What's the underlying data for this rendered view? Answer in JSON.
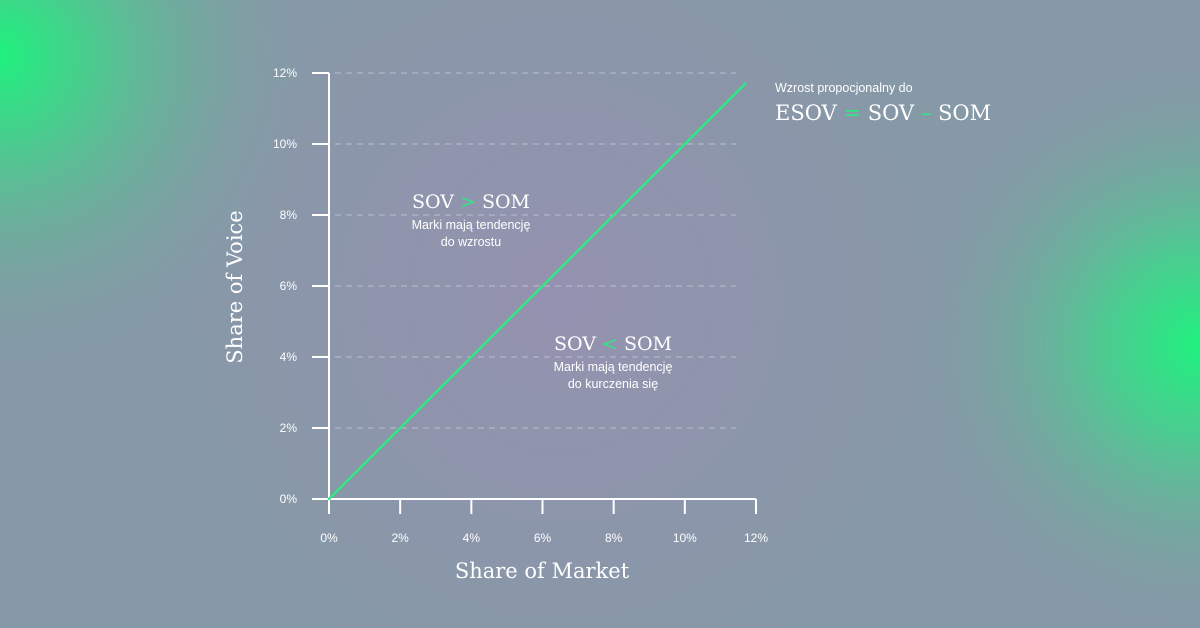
{
  "colors": {
    "accent": "#2ee882",
    "axis": "#ffffff",
    "grid": "#c8cdd8",
    "background": "#8a96aa"
  },
  "chart_data": {
    "type": "line",
    "xlabel": "Share of Market",
    "ylabel": "Share of Voice",
    "xlim": [
      0,
      12
    ],
    "ylim": [
      0,
      12
    ],
    "x_ticks": [
      "0%",
      "2%",
      "4%",
      "6%",
      "8%",
      "10%",
      "12%"
    ],
    "y_ticks": [
      "0%",
      "2%",
      "4%",
      "6%",
      "8%",
      "10%",
      "12%"
    ],
    "grid": "horizontal-dashed",
    "series": [
      {
        "x": [
          0,
          11.7
        ],
        "y": [
          0,
          11.7
        ]
      }
    ],
    "annotations": {
      "above": {
        "left": "SOV",
        "op": ">",
        "right": "SOM",
        "line1": "Marki mają tendencję",
        "line2": "do wzrostu"
      },
      "below": {
        "left": "SOV",
        "op": "<",
        "right": "SOM",
        "line1": "Marki mają tendencję",
        "line2": "do kurczenia się"
      },
      "corner": {
        "caption": "Wzrost propocjonalny do",
        "a": "ESOV",
        "eq": "=",
        "b": "SOV",
        "minus": "–",
        "c": "SOM"
      }
    }
  }
}
